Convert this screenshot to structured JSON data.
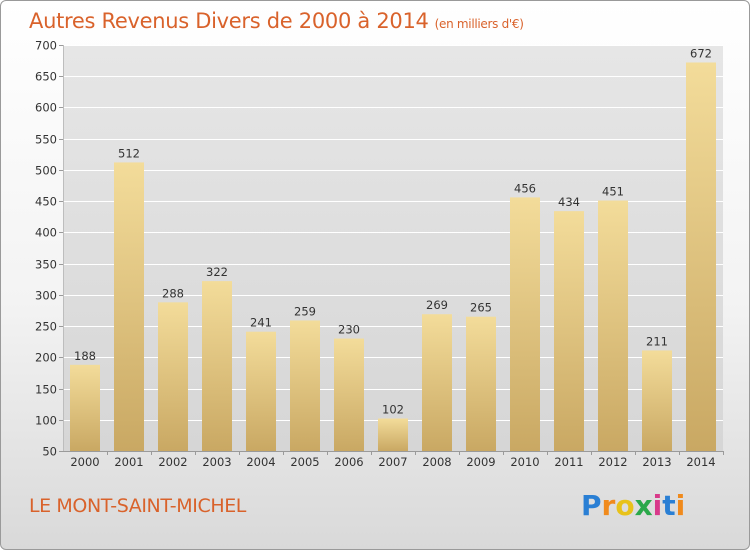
{
  "title": "Autres Revenus Divers de 2000 à 2014",
  "subtitle": "(en milliers d'€)",
  "place": "LE MONT-SAINT-MICHEL",
  "logo": {
    "text": "Proxiti",
    "letter_colors": [
      "#2a7fd4",
      "#f08a1c",
      "#e8c21a",
      "#2aa84a",
      "#d83a8a",
      "#2a7fd4",
      "#f08a1c"
    ]
  },
  "colors": {
    "title": "#d9622b",
    "bar_light": "#f3dc9a",
    "bar_dark": "#c9a863",
    "grid": "#ffffff",
    "plot_bg": "#e4e4e4"
  },
  "chart_data": {
    "type": "bar",
    "categories": [
      "2000",
      "2001",
      "2002",
      "2003",
      "2004",
      "2005",
      "2006",
      "2007",
      "2008",
      "2009",
      "2010",
      "2011",
      "2012",
      "2013",
      "2014"
    ],
    "values": [
      188,
      512,
      288,
      322,
      241,
      259,
      230,
      102,
      269,
      265,
      456,
      434,
      451,
      211,
      672
    ],
    "yticks": [
      50,
      100,
      150,
      200,
      250,
      300,
      350,
      400,
      450,
      500,
      550,
      600,
      650,
      700
    ],
    "ylim": [
      50,
      700
    ],
    "grid": true,
    "legend": "none"
  }
}
